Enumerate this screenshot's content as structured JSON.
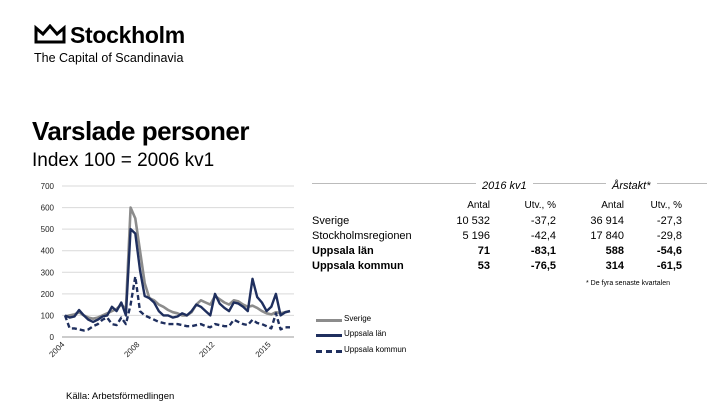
{
  "header": {
    "logo_word": "Stockholm",
    "logo_tagline": "The Capital of Scandinavia",
    "title": "Varslade personer",
    "subtitle": "Index 100 = 2006 kv1"
  },
  "colors": {
    "sverige": "#8c8c8c",
    "uppsala_lan": "#1f2f5e",
    "uppsala_kommun": "#1f2f5e"
  },
  "chart_data": {
    "type": "line",
    "title": "Varslade personer",
    "subtitle": "Index 100 = 2006 kv1",
    "ylim": [
      0,
      700
    ],
    "yticks": [
      0,
      100,
      200,
      300,
      400,
      500,
      600,
      700
    ],
    "xtick_labels": [
      "2004",
      "2008",
      "2012",
      "2015"
    ],
    "grid": true,
    "legend_position": "bottom-right",
    "x": [
      "2004 kv1",
      "2004 kv2",
      "2004 kv3",
      "2004 kv4",
      "2005 kv1",
      "2005 kv2",
      "2005 kv3",
      "2005 kv4",
      "2006 kv1",
      "2006 kv2",
      "2006 kv3",
      "2006 kv4",
      "2007 kv1",
      "2007 kv2",
      "2007 kv3",
      "2007 kv4",
      "2008 kv1",
      "2008 kv2",
      "2008 kv3",
      "2008 kv4",
      "2009 kv1",
      "2009 kv2",
      "2009 kv3",
      "2009 kv4",
      "2010 kv1",
      "2010 kv2",
      "2010 kv3",
      "2010 kv4",
      "2011 kv1",
      "2011 kv2",
      "2011 kv3",
      "2011 kv4",
      "2012 kv1",
      "2012 kv2",
      "2012 kv3",
      "2012 kv4",
      "2013 kv1",
      "2013 kv2",
      "2013 kv3",
      "2013 kv4",
      "2014 kv1",
      "2014 kv2",
      "2014 kv3",
      "2014 kv4",
      "2015 kv1",
      "2015 kv2",
      "2015 kv3",
      "2015 kv4",
      "2016 kv1"
    ],
    "series": [
      {
        "name": "Sverige",
        "style": "solid",
        "values": [
          95,
          100,
          105,
          115,
          100,
          90,
          85,
          90,
          100,
          110,
          120,
          130,
          150,
          130,
          600,
          550,
          400,
          250,
          180,
          170,
          150,
          140,
          125,
          115,
          110,
          100,
          100,
          115,
          150,
          170,
          160,
          150,
          190,
          175,
          160,
          150,
          170,
          165,
          150,
          140,
          145,
          135,
          120,
          110,
          105,
          115,
          110,
          115,
          120
        ]
      },
      {
        "name": "Uppsala län",
        "style": "solid",
        "values": [
          100,
          90,
          95,
          125,
          100,
          80,
          70,
          80,
          95,
          100,
          140,
          120,
          160,
          100,
          500,
          480,
          310,
          190,
          180,
          160,
          120,
          100,
          100,
          90,
          95,
          110,
          100,
          120,
          150,
          140,
          120,
          100,
          200,
          155,
          135,
          120,
          160,
          155,
          140,
          120,
          270,
          185,
          160,
          120,
          140,
          200,
          100,
          115,
          120
        ]
      },
      {
        "name": "Uppsala kommun",
        "style": "dashed",
        "values": [
          100,
          40,
          40,
          35,
          30,
          35,
          50,
          60,
          80,
          90,
          60,
          55,
          90,
          60,
          150,
          280,
          120,
          100,
          90,
          80,
          70,
          65,
          60,
          60,
          60,
          55,
          50,
          50,
          55,
          60,
          50,
          45,
          60,
          55,
          50,
          50,
          80,
          70,
          60,
          55,
          80,
          65,
          60,
          50,
          40,
          110,
          35,
          45,
          45
        ]
      }
    ]
  },
  "stats": {
    "period1": "2016 kv1",
    "period2": "Årstakt*",
    "col_antal": "Antal",
    "col_utv": "Utv., %",
    "rows": [
      {
        "label": "Sverige",
        "a1": "10 532",
        "u1": "-37,2",
        "a2": "36 914",
        "u2": "-27,3"
      },
      {
        "label": "Stockholmsregionen",
        "a1": "5 196",
        "u1": "-42,4",
        "a2": "17 840",
        "u2": "-29,8"
      },
      {
        "label": "Uppsala län",
        "a1": "71",
        "u1": "-83,1",
        "a2": "588",
        "u2": "-54,6"
      },
      {
        "label": "Uppsala kommun",
        "a1": "53",
        "u1": "-76,5",
        "a2": "314",
        "u2": "-61,5"
      }
    ],
    "footnote": "* De fyra senaste kvartalen"
  },
  "legend": [
    "Sverige",
    "Uppsala län",
    "Uppsala kommun"
  ],
  "source": "Källa: Arbetsförmedlingen"
}
